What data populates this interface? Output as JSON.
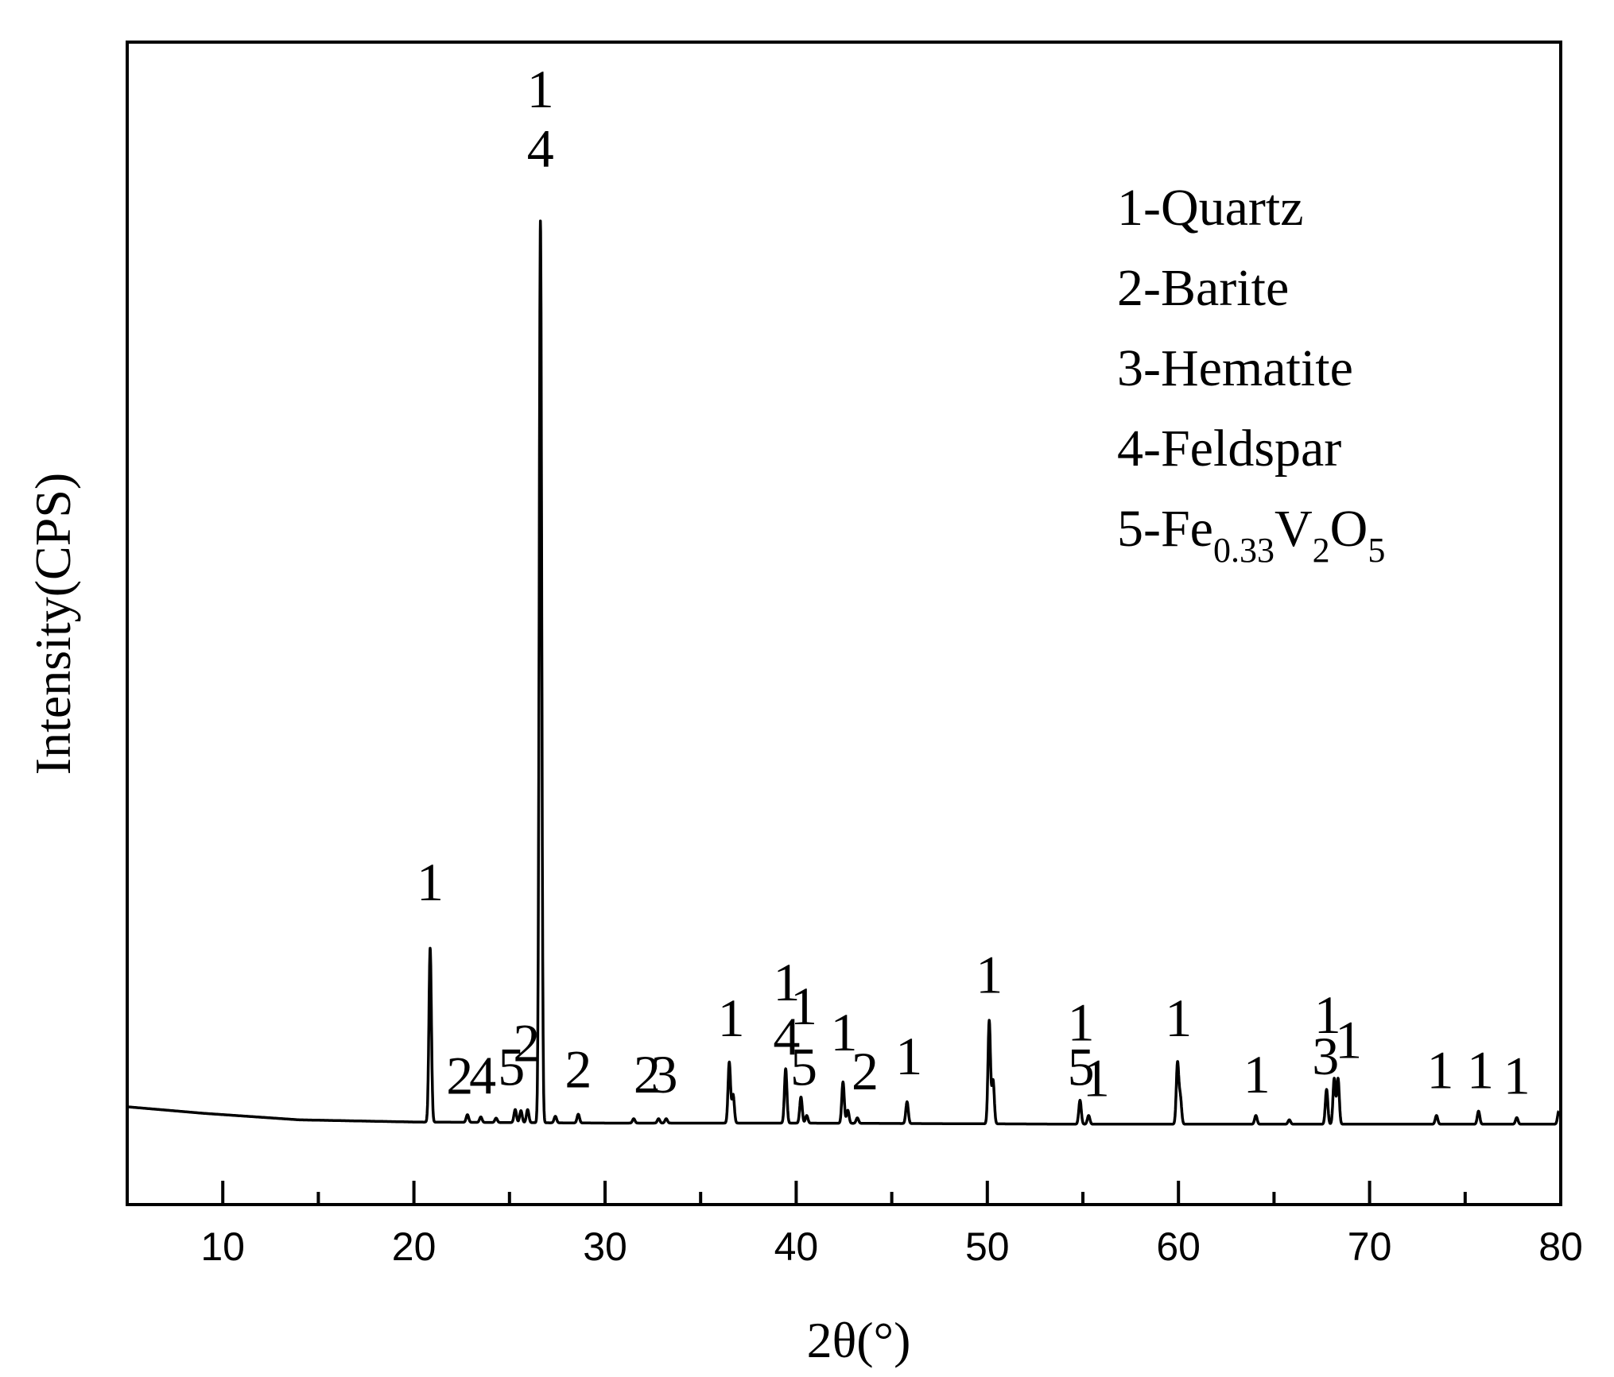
{
  "chart_data": {
    "type": "line",
    "title": "",
    "xlabel": "2θ(°)",
    "ylabel": "Intensity(CPS)",
    "xlim": [
      5,
      80
    ],
    "ylim": [
      -0.07,
      1.0
    ],
    "x_ticks": [
      10,
      20,
      30,
      40,
      50,
      60,
      70,
      80
    ],
    "x_tick_labels": [
      "10",
      "20",
      "30",
      "40",
      "50",
      "60",
      "70",
      "80"
    ],
    "y_tick_labels": [],
    "grid": false,
    "series": [
      {
        "baseline": [
          [
            5,
            0.02
          ],
          [
            9,
            0.014
          ],
          [
            14,
            0.008
          ],
          [
            20,
            0.006
          ],
          [
            30,
            0.005
          ],
          [
            40,
            0.005
          ],
          [
            55,
            0.004
          ],
          [
            70,
            0.004
          ],
          [
            79.8,
            0.004
          ]
        ],
        "peaks": [
          {
            "x": 20.85,
            "y": 0.16
          },
          {
            "x": 22.8,
            "y": 0.007
          },
          {
            "x": 23.5,
            "y": 0.005
          },
          {
            "x": 24.3,
            "y": 0.004
          },
          {
            "x": 25.3,
            "y": 0.012
          },
          {
            "x": 25.6,
            "y": 0.011
          },
          {
            "x": 25.95,
            "y": 0.012
          },
          {
            "x": 26.62,
            "y": 0.83
          },
          {
            "x": 27.4,
            "y": 0.006
          },
          {
            "x": 28.6,
            "y": 0.008
          },
          {
            "x": 31.5,
            "y": 0.004
          },
          {
            "x": 32.8,
            "y": 0.004
          },
          {
            "x": 33.2,
            "y": 0.004
          },
          {
            "x": 36.5,
            "y": 0.056
          },
          {
            "x": 36.7,
            "y": 0.026
          },
          {
            "x": 39.45,
            "y": 0.05
          },
          {
            "x": 40.25,
            "y": 0.024
          },
          {
            "x": 40.55,
            "y": 0.007
          },
          {
            "x": 42.45,
            "y": 0.038
          },
          {
            "x": 42.7,
            "y": 0.012
          },
          {
            "x": 43.2,
            "y": 0.005
          },
          {
            "x": 45.8,
            "y": 0.02
          },
          {
            "x": 50.1,
            "y": 0.095
          },
          {
            "x": 50.3,
            "y": 0.04
          },
          {
            "x": 54.85,
            "y": 0.022
          },
          {
            "x": 55.3,
            "y": 0.008
          },
          {
            "x": 59.95,
            "y": 0.056
          },
          {
            "x": 60.1,
            "y": 0.024
          },
          {
            "x": 64.05,
            "y": 0.008
          },
          {
            "x": 65.8,
            "y": 0.004
          },
          {
            "x": 67.75,
            "y": 0.032
          },
          {
            "x": 68.15,
            "y": 0.042
          },
          {
            "x": 68.35,
            "y": 0.042
          },
          {
            "x": 73.5,
            "y": 0.008
          },
          {
            "x": 75.7,
            "y": 0.012
          },
          {
            "x": 77.7,
            "y": 0.006
          },
          {
            "x": 79.9,
            "y": 0.012
          }
        ]
      }
    ],
    "annotations": [
      {
        "text": "1",
        "x": 20.85,
        "y": 0.21
      },
      {
        "text": "2",
        "x": 22.4,
        "y": 0.032
      },
      {
        "text": "4",
        "x": 23.6,
        "y": 0.032
      },
      {
        "text": "5",
        "x": 25.1,
        "y": 0.04
      },
      {
        "text": "2",
        "x": 25.9,
        "y": 0.062
      },
      {
        "text": "1",
        "x": 26.62,
        "y": 0.94
      },
      {
        "text": "4",
        "x": 26.62,
        "y": 0.885
      },
      {
        "text": "2",
        "x": 28.6,
        "y": 0.038
      },
      {
        "text": "2",
        "x": 32.2,
        "y": 0.033
      },
      {
        "text": "3",
        "x": 33.1,
        "y": 0.033
      },
      {
        "text": "1",
        "x": 36.6,
        "y": 0.085
      },
      {
        "text": "1",
        "x": 39.5,
        "y": 0.118
      },
      {
        "text": "4",
        "x": 39.5,
        "y": 0.068
      },
      {
        "text": "1",
        "x": 40.4,
        "y": 0.096
      },
      {
        "text": "5",
        "x": 40.4,
        "y": 0.04
      },
      {
        "text": "1",
        "x": 42.5,
        "y": 0.072
      },
      {
        "text": "2",
        "x": 43.6,
        "y": 0.036
      },
      {
        "text": "1",
        "x": 45.9,
        "y": 0.05
      },
      {
        "text": "1",
        "x": 50.1,
        "y": 0.125
      },
      {
        "text": "1",
        "x": 54.9,
        "y": 0.081
      },
      {
        "text": "5",
        "x": 54.9,
        "y": 0.04
      },
      {
        "text": "1",
        "x": 55.7,
        "y": 0.03
      },
      {
        "text": "1",
        "x": 60.0,
        "y": 0.085
      },
      {
        "text": "1",
        "x": 64.1,
        "y": 0.033
      },
      {
        "text": "1",
        "x": 67.8,
        "y": 0.088
      },
      {
        "text": "3",
        "x": 67.7,
        "y": 0.05
      },
      {
        "text": "1",
        "x": 68.9,
        "y": 0.065
      },
      {
        "text": "1",
        "x": 73.7,
        "y": 0.037
      },
      {
        "text": "1",
        "x": 75.8,
        "y": 0.037
      },
      {
        "text": "1",
        "x": 77.7,
        "y": 0.032
      }
    ],
    "legend": {
      "placement": "top-right",
      "entries": [
        {
          "text": "1-Quartz"
        },
        {
          "text": "2-Barite"
        },
        {
          "text": "3-Hematite"
        },
        {
          "text": "4-Feldspar"
        },
        {
          "text": "5-Fe",
          "subs": [
            {
              "sub": "0.33",
              "after": "V"
            },
            {
              "sub": "2",
              "after": "O"
            },
            {
              "sub": "5",
              "after": ""
            }
          ]
        }
      ]
    }
  }
}
